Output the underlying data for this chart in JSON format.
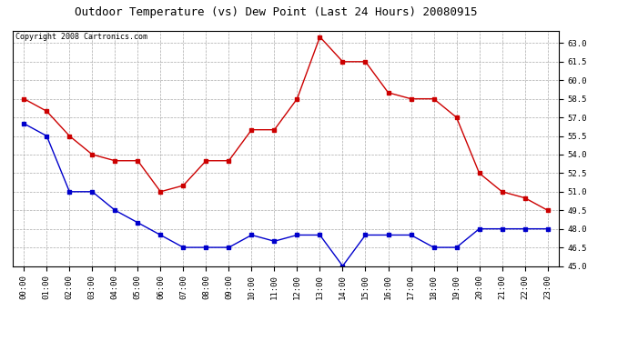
{
  "title": "Outdoor Temperature (vs) Dew Point (Last 24 Hours) 20080915",
  "copyright": "Copyright 2008 Cartronics.com",
  "hours": [
    "00:00",
    "01:00",
    "02:00",
    "03:00",
    "04:00",
    "05:00",
    "06:00",
    "07:00",
    "08:00",
    "09:00",
    "10:00",
    "11:00",
    "12:00",
    "13:00",
    "14:00",
    "15:00",
    "16:00",
    "17:00",
    "18:00",
    "19:00",
    "20:00",
    "21:00",
    "22:00",
    "23:00"
  ],
  "temp_red": [
    58.5,
    57.5,
    55.5,
    54.0,
    53.5,
    53.5,
    51.0,
    51.5,
    53.5,
    53.5,
    56.0,
    56.0,
    58.5,
    63.5,
    61.5,
    61.5,
    59.0,
    58.5,
    58.5,
    57.0,
    52.5,
    51.0,
    50.5,
    49.5
  ],
  "dew_blue": [
    56.5,
    55.5,
    51.0,
    51.0,
    49.5,
    48.5,
    47.5,
    46.5,
    46.5,
    46.5,
    47.5,
    47.0,
    47.5,
    47.5,
    45.0,
    47.5,
    47.5,
    47.5,
    46.5,
    46.5,
    48.0,
    48.0,
    48.0,
    48.0
  ],
  "red_color": "#cc0000",
  "blue_color": "#0000cc",
  "bg_color": "#ffffff",
  "grid_color": "#aaaaaa",
  "ylim_min": 45.0,
  "ylim_max": 64.0,
  "ytick_step": 1.5,
  "title_fontsize": 9,
  "copyright_fontsize": 6,
  "tick_fontsize": 6.5
}
